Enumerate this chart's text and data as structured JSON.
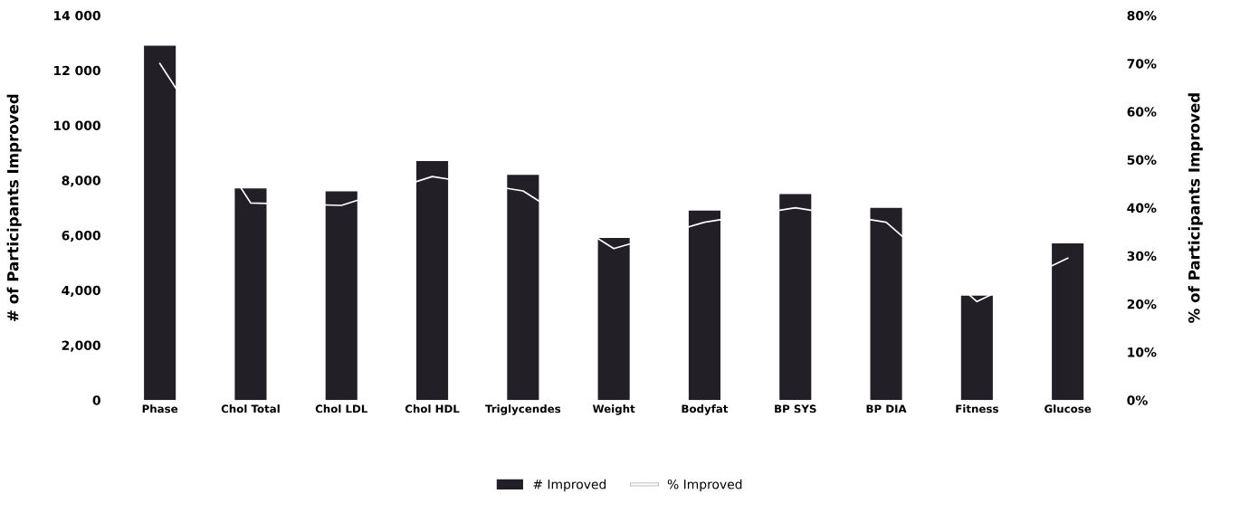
{
  "chart_data": {
    "type": "bar",
    "categories": [
      "Phase",
      "Chol Total",
      "Chol LDL",
      "Chol HDL",
      "Triglycendes",
      "Weight",
      "Bodyfat",
      "BP SYS",
      "BP DIA",
      "Fitness",
      "Glucose"
    ],
    "series": [
      {
        "name": "# Improved",
        "color": "#231f26",
        "values": [
          12900,
          7700,
          7600,
          8700,
          8200,
          5900,
          6900,
          7500,
          7000,
          3800,
          5700
        ]
      },
      {
        "name": "% Improved",
        "type": "line",
        "axis": "y2",
        "color": "#ffffff",
        "values": [
          70,
          41,
          40.5,
          46.5,
          43.5,
          31.5,
          37,
          40,
          37,
          20.5,
          29.5
        ]
      }
    ],
    "ylabel": "# of Participants Improved",
    "y2label": "% of Participants Improved",
    "ylim": [
      0,
      14000
    ],
    "yticks": [
      0,
      {
        "value": 2000,
        "label": "2,000"
      },
      {
        "value": 4000,
        "label": "4,000"
      },
      {
        "value": 6000,
        "label": "6,000"
      },
      {
        "value": 8000,
        "label": "8,000"
      },
      {
        "value": 10000,
        "label": "10 000"
      },
      {
        "value": 12000,
        "label": "12 000"
      },
      {
        "value": 14000,
        "label": "14 000"
      }
    ],
    "y2lim": [
      0,
      80
    ],
    "y2ticks": [
      {
        "value": 0,
        "label": "0%"
      },
      {
        "value": 10,
        "label": "10%"
      },
      {
        "value": 20,
        "label": "20%"
      },
      {
        "value": 30,
        "label": "30%"
      },
      {
        "value": 40,
        "label": "40%"
      },
      {
        "value": 50,
        "label": "50%"
      },
      {
        "value": 60,
        "label": "60%"
      },
      {
        "value": 70,
        "label": "70%"
      },
      {
        "value": 80,
        "label": "80%"
      }
    ],
    "grid": false,
    "legend": "bottom",
    "marker": "none",
    "line_style": "solid"
  }
}
